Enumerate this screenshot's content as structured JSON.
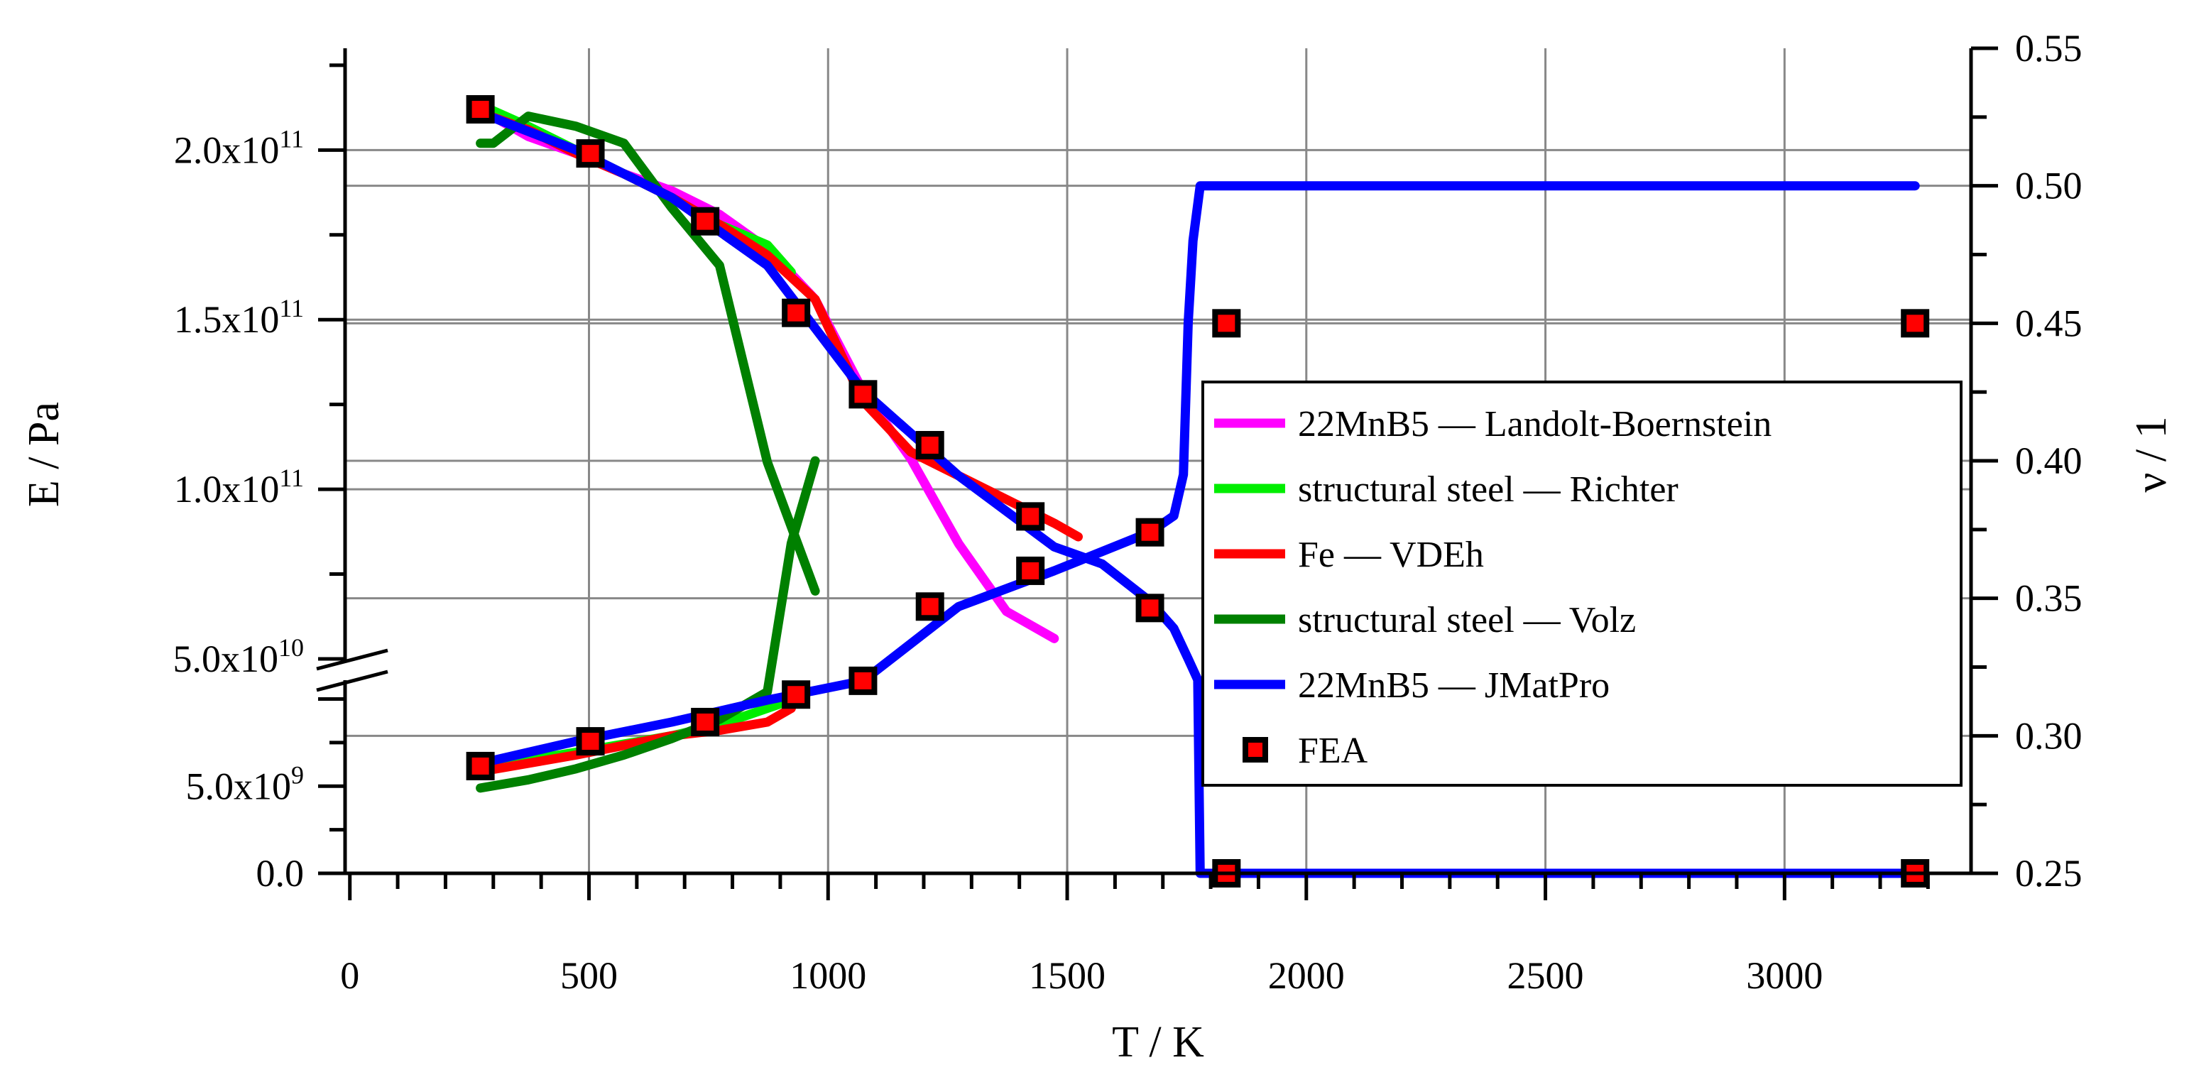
{
  "chart_data": {
    "type": "line",
    "xlabel": "T / K",
    "ylabel_left": "E / Pa",
    "ylabel_right": "ν / 1",
    "xlim": [
      -10,
      3390
    ],
    "x_ticks": [
      "0",
      "500",
      "1000",
      "1500",
      "2000",
      "2500",
      "3000"
    ],
    "x_tick_values": [
      0,
      500,
      1000,
      1500,
      2000,
      2500,
      3000
    ],
    "y_left_ticks": [
      {
        "value": 0,
        "label": "0.0"
      },
      {
        "value": 5000000000,
        "label": "5.0x10",
        "exp": "9"
      },
      {
        "value": 50000000000,
        "label": "5.0x10",
        "exp": "10"
      },
      {
        "value": 100000000000,
        "label": "1.0x10",
        "exp": "11"
      },
      {
        "value": 150000000000,
        "label": "1.5x10",
        "exp": "11"
      },
      {
        "value": 200000000000,
        "label": "2.0x10",
        "exp": "11"
      }
    ],
    "y_right_ticks": [
      "0.25",
      "0.30",
      "0.35",
      "0.40",
      "0.45",
      "0.50",
      "0.55"
    ],
    "y_right_lim": [
      0.25,
      0.55
    ],
    "axis_break": "left axis broken between 5.0x10^10 and lower range (~1.1x10^10)",
    "series": [
      {
        "name": "22MnB5 — Landolt-Boernstein",
        "color": "#ff00ff",
        "axis": "E",
        "points": [
          [
            273,
            212000000000.0
          ],
          [
            373,
            204000000000.0
          ],
          [
            473,
            199000000000.0
          ],
          [
            573,
            193000000000.0
          ],
          [
            673,
            188000000000.0
          ],
          [
            773,
            181000000000.0
          ],
          [
            873,
            171000000000.0
          ],
          [
            973,
            156000000000.0
          ],
          [
            1073,
            129000000000.0
          ],
          [
            1173,
            109000000000.0
          ],
          [
            1273,
            84000000000.0
          ],
          [
            1373,
            64000000000.0
          ],
          [
            1473,
            56000000000.0
          ]
        ]
      },
      {
        "name": "structural steel — Richter",
        "color": "#00ee00",
        "axis": "E",
        "points": [
          [
            293,
            212000000000.0
          ],
          [
            373,
            207000000000.0
          ],
          [
            473,
            200000000000.0
          ],
          [
            573,
            193000000000.0
          ],
          [
            673,
            186000000000.0
          ],
          [
            773,
            178000000000.0
          ],
          [
            873,
            172000000000.0
          ],
          [
            923,
            164000000000.0
          ]
        ]
      },
      {
        "name": "structural steel — Richter",
        "color": "#00ee00",
        "axis": "nu",
        "points": [
          [
            293,
            0.289
          ],
          [
            473,
            0.294
          ],
          [
            673,
            0.3
          ],
          [
            773,
            0.304
          ],
          [
            873,
            0.31
          ],
          [
            923,
            0.313
          ]
        ]
      },
      {
        "name": "Fe — VDEh",
        "color": "#ff0000",
        "axis": "E",
        "points": [
          [
            273,
            211000000000.0
          ],
          [
            373,
            206000000000.0
          ],
          [
            473,
            199000000000.0
          ],
          [
            573,
            193000000000.0
          ],
          [
            673,
            186000000000.0
          ],
          [
            773,
            178000000000.0
          ],
          [
            873,
            169000000000.0
          ],
          [
            973,
            156000000000.0
          ],
          [
            1073,
            126000000000.0
          ],
          [
            1173,
            111000000000.0
          ],
          [
            1273,
            104000000000.0
          ],
          [
            1373,
            97000000000.0
          ],
          [
            1473,
            90000000000.0
          ],
          [
            1523,
            86000000000.0
          ]
        ]
      },
      {
        "name": "Fe — VDEh",
        "color": "#ff0000",
        "axis": "nu",
        "points": [
          [
            273,
            0.287
          ],
          [
            473,
            0.293
          ],
          [
            673,
            0.3
          ],
          [
            773,
            0.302
          ],
          [
            873,
            0.305
          ],
          [
            923,
            0.31
          ]
        ]
      },
      {
        "name": "structural steel — Volz",
        "color": "#008000",
        "axis": "E",
        "points": [
          [
            273,
            202000000000.0
          ],
          [
            300,
            202000000000.0
          ],
          [
            373,
            210000000000.0
          ],
          [
            473,
            207000000000.0
          ],
          [
            573,
            202000000000.0
          ],
          [
            673,
            183000000000.0
          ],
          [
            773,
            166000000000.0
          ],
          [
            873,
            108000000000.0
          ],
          [
            973,
            70000000000.0
          ]
        ]
      },
      {
        "name": "structural steel — Volz",
        "color": "#008000",
        "axis": "nu",
        "points": [
          [
            273,
            0.281
          ],
          [
            373,
            0.284
          ],
          [
            473,
            0.288
          ],
          [
            573,
            0.293
          ],
          [
            673,
            0.299
          ],
          [
            773,
            0.306
          ],
          [
            873,
            0.316
          ],
          [
            923,
            0.37
          ],
          [
            973,
            0.4
          ]
        ]
      },
      {
        "name": "22MnB5 — JMatPro",
        "color": "#0000ff",
        "axis": "E",
        "points": [
          [
            273,
            211000000000.0
          ],
          [
            473,
            200000000000.0
          ],
          [
            673,
            186000000000.0
          ],
          [
            873,
            166000000000.0
          ],
          [
            1073,
            129000000000.0
          ],
          [
            1273,
            104000000000.0
          ],
          [
            1473,
            83000000000.0
          ],
          [
            1573,
            78000000000.0
          ],
          [
            1673,
            67000000000.0
          ],
          [
            1723,
            59000000000.0
          ],
          [
            1753,
            50000000000.0
          ],
          [
            1763,
            32000000000.0
          ],
          [
            1773,
            14000000000.0
          ],
          [
            1778,
            0
          ],
          [
            1800,
            0
          ],
          [
            3273,
            0
          ]
        ]
      },
      {
        "name": "22MnB5 — JMatPro",
        "color": "#0000ff",
        "axis": "nu",
        "points": [
          [
            273,
            0.29
          ],
          [
            473,
            0.298
          ],
          [
            673,
            0.305
          ],
          [
            873,
            0.313
          ],
          [
            1073,
            0.32
          ],
          [
            1273,
            0.347
          ],
          [
            1473,
            0.36
          ],
          [
            1673,
            0.374
          ],
          [
            1723,
            0.38
          ],
          [
            1743,
            0.395
          ],
          [
            1753,
            0.45
          ],
          [
            1763,
            0.48
          ],
          [
            1778,
            0.5
          ],
          [
            1800,
            0.5
          ],
          [
            3273,
            0.5
          ]
        ]
      },
      {
        "name": "FEA",
        "color": "#ff0000",
        "axis": "E",
        "marker": "square",
        "points": [
          [
            273,
            212000000000.0
          ],
          [
            503,
            199000000000.0
          ],
          [
            743,
            179000000000.0
          ],
          [
            933,
            152000000000.0
          ],
          [
            1073,
            128000000000.0
          ],
          [
            1213,
            113000000000.0
          ],
          [
            1423,
            92000000000.0
          ],
          [
            1673,
            65000000000.0
          ],
          [
            1833,
            0
          ],
          [
            3273,
            0
          ]
        ]
      },
      {
        "name": "FEA",
        "color": "#ff0000",
        "axis": "nu",
        "marker": "square",
        "points": [
          [
            273,
            0.289
          ],
          [
            503,
            0.298
          ],
          [
            743,
            0.305
          ],
          [
            933,
            0.315
          ],
          [
            1073,
            0.32
          ],
          [
            1213,
            0.347
          ],
          [
            1423,
            0.36
          ],
          [
            1673,
            0.374
          ],
          [
            1833,
            0.45
          ],
          [
            3273,
            0.45
          ]
        ]
      }
    ],
    "legend": {
      "position": "center-right",
      "entries": [
        {
          "label": "22MnB5 — Landolt-Boernstein",
          "color": "#ff00ff",
          "kind": "line"
        },
        {
          "label": "structural steel — Richter",
          "color": "#00ee00",
          "kind": "line"
        },
        {
          "label": "Fe — VDEh",
          "color": "#ff0000",
          "kind": "line"
        },
        {
          "label": "structural steel — Volz",
          "color": "#008000",
          "kind": "line"
        },
        {
          "label": "22MnB5 — JMatPro",
          "color": "#0000ff",
          "kind": "line"
        },
        {
          "label": "FEA",
          "color": "#ff0000",
          "kind": "marker"
        }
      ]
    },
    "grid": true
  }
}
